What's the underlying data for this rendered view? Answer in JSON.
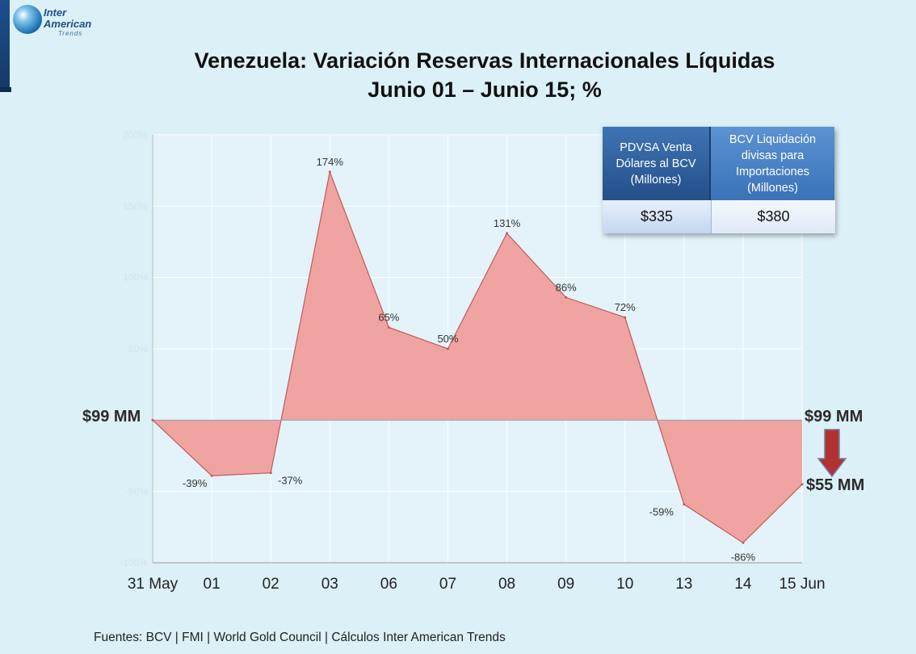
{
  "logo": {
    "line1": "Inter",
    "line2": "American",
    "line3": "Trends"
  },
  "title": {
    "line1": "Venezuela: Variación Reservas Internacionales Líquidas",
    "line2": "Junio 01 – Junio 15; %"
  },
  "chart_data": {
    "type": "area",
    "categories": [
      "31 May",
      "01",
      "02",
      "03",
      "06",
      "07",
      "08",
      "09",
      "10",
      "13",
      "14",
      "15 Jun"
    ],
    "values": [
      0,
      -39,
      -37,
      174,
      65,
      50,
      131,
      86,
      72,
      -59,
      -86,
      -45
    ],
    "data_labels": [
      "",
      "-39%",
      "-37%",
      "174%",
      "65%",
      "50%",
      "131%",
      "86%",
      "72%",
      "-59%",
      "-86%",
      ""
    ],
    "y_ticks": [
      "200%",
      "150%",
      "100%",
      "50%",
      "",
      "-50%",
      "-100%"
    ],
    "ylim": [
      -100,
      200
    ],
    "fill_color": "#f0a4a1",
    "line_color": "#c05a5a",
    "grid": true
  },
  "side_labels": {
    "start": "$99 MM",
    "end_top": "$99 MM",
    "end_bottom": "$55 MM"
  },
  "info_box": {
    "col1_header": "PDVSA Venta Dólares al BCV (Millones)",
    "col2_header": "BCV Liquidación divisas para Importaciones (Millones)",
    "col1_value": "$335",
    "col2_value": "$380"
  },
  "arrow_color": "#b3312f",
  "footer": "Fuentes: BCV | FMI | World Gold Council  | Cálculos Inter American Trends"
}
